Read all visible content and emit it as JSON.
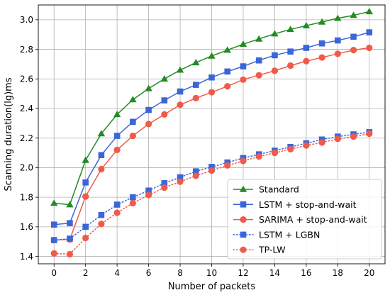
{
  "chart_data": {
    "type": "line",
    "xlabel": "Number of packets",
    "ylabel": "Scanning duration(lg)ms",
    "xlim": [
      -1,
      21
    ],
    "ylim": [
      1.35,
      3.1
    ],
    "xticks": [
      "0",
      "2",
      "4",
      "6",
      "8",
      "10",
      "12",
      "14",
      "16",
      "18",
      "20"
    ],
    "yticks": [
      "1.4",
      "1.6",
      "1.8",
      "2.0",
      "2.2",
      "2.4",
      "2.6",
      "2.8",
      "3.0"
    ],
    "grid": true,
    "legend_position": "lower-right",
    "x": [
      0,
      1,
      2,
      3,
      4,
      5,
      6,
      7,
      8,
      9,
      10,
      11,
      12,
      13,
      14,
      15,
      16,
      17,
      18,
      19,
      20
    ],
    "series": [
      {
        "name": "Standard",
        "color": "#228b22",
        "marker": "triangle",
        "line_style": "solid",
        "values": [
          1.76,
          1.75,
          2.05,
          2.23,
          2.36,
          2.46,
          2.535,
          2.6,
          2.66,
          2.71,
          2.755,
          2.795,
          2.835,
          2.87,
          2.905,
          2.935,
          2.96,
          2.985,
          3.01,
          3.03,
          3.055
        ]
      },
      {
        "name": "LSTM + stop-and-wait",
        "color": "#3a66d8",
        "marker": "square",
        "line_style": "solid",
        "values": [
          1.615,
          1.625,
          1.9,
          2.085,
          2.215,
          2.31,
          2.39,
          2.455,
          2.515,
          2.56,
          2.61,
          2.65,
          2.685,
          2.725,
          2.76,
          2.785,
          2.81,
          2.84,
          2.86,
          2.885,
          2.915
        ]
      },
      {
        "name": "SARIMA + stop-and-wait",
        "color": "#f05a4a",
        "marker": "circle",
        "line_style": "solid",
        "values": [
          1.51,
          1.515,
          1.805,
          1.99,
          2.12,
          2.215,
          2.295,
          2.36,
          2.425,
          2.47,
          2.51,
          2.55,
          2.595,
          2.625,
          2.655,
          2.69,
          2.72,
          2.745,
          2.77,
          2.795,
          2.81
        ]
      },
      {
        "name": "LSTM + LGBN",
        "color": "#3a66d8",
        "marker": "square",
        "line_style": "dotted",
        "values": [
          1.51,
          1.52,
          1.6,
          1.68,
          1.75,
          1.8,
          1.845,
          1.895,
          1.935,
          1.975,
          2.005,
          2.035,
          2.065,
          2.09,
          2.115,
          2.14,
          2.165,
          2.19,
          2.21,
          2.225,
          2.24
        ]
      },
      {
        "name": "TP-LW",
        "color": "#f05a4a",
        "marker": "circle",
        "line_style": "dotted",
        "values": [
          1.42,
          1.415,
          1.525,
          1.62,
          1.695,
          1.76,
          1.815,
          1.865,
          1.905,
          1.945,
          1.98,
          2.015,
          2.045,
          2.075,
          2.1,
          2.125,
          2.15,
          2.17,
          2.195,
          2.21,
          2.23
        ]
      }
    ]
  }
}
